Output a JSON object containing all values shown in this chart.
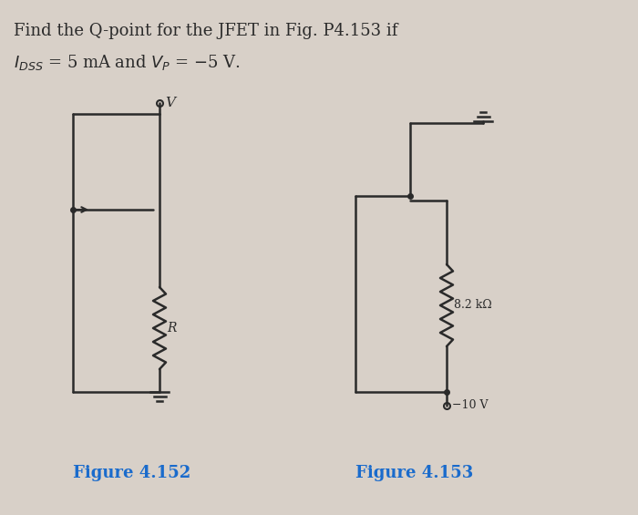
{
  "bg_color": "#d8d0c8",
  "title_line1": "Find the Q-point for the JFET in Fig. P4.153 if",
  "title_line2_parts": [
    {
      "text": "I",
      "style": "italic"
    },
    {
      "text": "DSS",
      "style": "subscript"
    },
    {
      "text": " = 5 mA and ",
      "style": "normal"
    },
    {
      "text": "V",
      "style": "italic"
    },
    {
      "text": "P",
      "style": "subscript"
    },
    {
      "text": " = −5 V.",
      "style": "normal"
    }
  ],
  "fig152_label": "Figure 4.152",
  "fig153_label": "Figure 4.153",
  "fig152_label_color": "#1a6bcc",
  "fig153_label_color": "#1a6bcc",
  "line_color": "#2a2a2a",
  "text_color": "#2a2a2a",
  "resistor_label_152": "R",
  "resistor_label_153": "8.2 kΩ",
  "voltage_label_152": "V",
  "voltage_label_153": "−10 V"
}
